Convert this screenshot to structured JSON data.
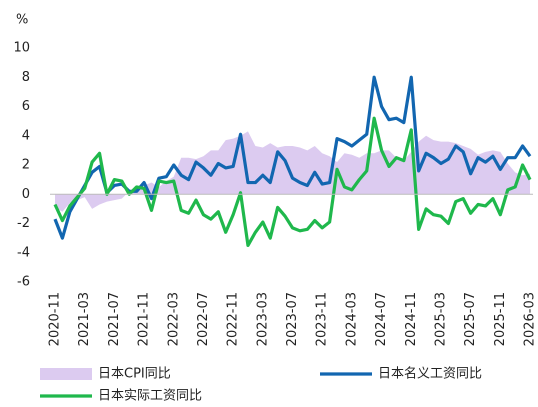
{
  "chart_data": {
    "type": "line",
    "y_label": "%",
    "categories": [
      "2020-11",
      null,
      null,
      null,
      "2021-03",
      null,
      null,
      null,
      "2021-07",
      null,
      null,
      null,
      "2021-11",
      null,
      null,
      null,
      "2022-03",
      null,
      null,
      null,
      "2022-07",
      null,
      null,
      null,
      "2022-11",
      null,
      null,
      null,
      "2023-03",
      null,
      null,
      null,
      "2023-07",
      null,
      null,
      null,
      "2023-11",
      null,
      null,
      null,
      "2024-03",
      null,
      null,
      null,
      "2024-07",
      null,
      null,
      null,
      "2024-11",
      null,
      null,
      null,
      "2025-03",
      null,
      null,
      null,
      "2025-07",
      null,
      null,
      null,
      "2025-11",
      null,
      null,
      null,
      "2026-03"
    ],
    "ylim": [
      -6,
      10
    ],
    "yticks": [
      -6,
      -4,
      -2,
      0,
      2,
      4,
      6,
      8,
      10
    ],
    "series": [
      {
        "name": "日本CPI同比",
        "type": "area",
        "color": "#dccbf0",
        "values": [
          -0.9,
          -1.2,
          -0.6,
          -0.4,
          -0.2,
          -1.0,
          -0.7,
          -0.5,
          -0.4,
          -0.3,
          0.2,
          0.1,
          0.6,
          0.8,
          0.5,
          0.9,
          1.2,
          2.5,
          2.5,
          2.4,
          2.6,
          3.0,
          3.0,
          3.7,
          3.8,
          4.0,
          4.3,
          3.3,
          3.2,
          3.5,
          3.2,
          3.3,
          3.3,
          3.2,
          3.0,
          3.3,
          2.8,
          2.6,
          2.2,
          2.8,
          2.7,
          2.5,
          2.8,
          2.8,
          3.0,
          3.0,
          2.5,
          2.3,
          2.9,
          3.6,
          4.0,
          3.7,
          3.6,
          3.6,
          3.5,
          3.3,
          3.1,
          2.7,
          2.9,
          3.0,
          2.9,
          2.1,
          1.5,
          1.3,
          1.4
        ]
      },
      {
        "name": "日本名义工资同比",
        "type": "line",
        "color": "#1266b0",
        "values": [
          -1.7,
          -3.0,
          -1.2,
          -0.3,
          0.6,
          1.5,
          1.9,
          0.1,
          0.6,
          0.7,
          0.2,
          0.2,
          0.8,
          -0.3,
          1.1,
          1.2,
          2.0,
          1.3,
          1.0,
          2.2,
          1.8,
          1.3,
          2.1,
          1.8,
          1.9,
          4.1,
          0.8,
          0.8,
          1.3,
          0.8,
          2.9,
          2.3,
          1.1,
          0.8,
          0.6,
          1.5,
          0.7,
          0.8,
          3.8,
          3.6,
          3.3,
          3.7,
          4.1,
          8.0,
          6.0,
          5.1,
          5.2,
          4.9,
          8.0,
          1.6,
          2.8,
          2.5,
          2.1,
          2.4,
          3.3,
          2.9,
          1.4,
          2.5,
          2.2,
          2.6,
          1.7,
          2.5,
          2.5,
          3.3,
          2.6
        ]
      },
      {
        "name": "日本实际工资同比",
        "type": "line",
        "color": "#1fb84c",
        "values": [
          -0.7,
          -1.8,
          -0.8,
          -0.2,
          0.4,
          2.2,
          2.8,
          0.0,
          1.0,
          0.9,
          0.0,
          0.5,
          0.4,
          -1.1,
          0.9,
          0.8,
          0.9,
          -1.1,
          -1.3,
          -0.4,
          -1.4,
          -1.7,
          -1.2,
          -2.6,
          -1.4,
          0.1,
          -3.5,
          -2.6,
          -1.9,
          -3.0,
          -0.9,
          -1.5,
          -2.3,
          -2.5,
          -2.4,
          -1.8,
          -2.3,
          -1.9,
          1.7,
          0.5,
          0.3,
          1.0,
          1.6,
          5.2,
          3.0,
          1.9,
          2.5,
          2.3,
          4.4,
          -2.4,
          -1.0,
          -1.4,
          -1.5,
          -2.0,
          -0.5,
          -0.3,
          -1.3,
          -0.7,
          -0.8,
          -0.3,
          -1.4,
          0.3,
          0.5,
          2.0,
          1.0
        ]
      }
    ]
  }
}
